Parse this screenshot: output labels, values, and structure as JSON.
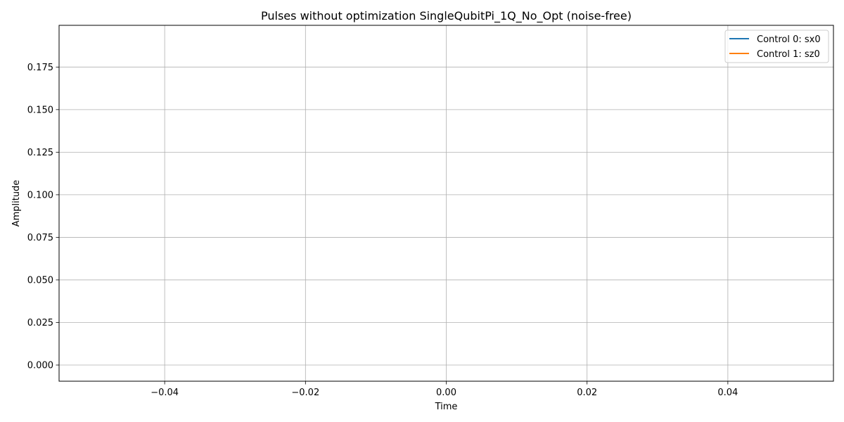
{
  "chart_data": {
    "type": "line",
    "title": "Pulses without optimization SingleQubitPi_1Q_No_Opt (noise-free)",
    "xlabel": "Time",
    "ylabel": "Amplitude",
    "xlim": [
      -0.055,
      0.055
    ],
    "ylim": [
      -0.0095,
      0.1995
    ],
    "xticks": [
      -0.04,
      -0.02,
      0.0,
      0.02,
      0.04
    ],
    "xtick_labels": [
      "−0.04",
      "−0.02",
      "0.00",
      "0.02",
      "0.04"
    ],
    "yticks": [
      0.0,
      0.025,
      0.05,
      0.075,
      0.1,
      0.125,
      0.15,
      0.175
    ],
    "ytick_labels": [
      "0.000",
      "0.025",
      "0.050",
      "0.075",
      "0.100",
      "0.125",
      "0.150",
      "0.175"
    ],
    "grid": true,
    "legend_position": "top-right",
    "series": [
      {
        "name": "Control 0: sx0",
        "color": "#1f77b4",
        "x": [],
        "y": []
      },
      {
        "name": "Control 1: sz0",
        "color": "#ff7f0e",
        "x": [],
        "y": []
      }
    ]
  }
}
